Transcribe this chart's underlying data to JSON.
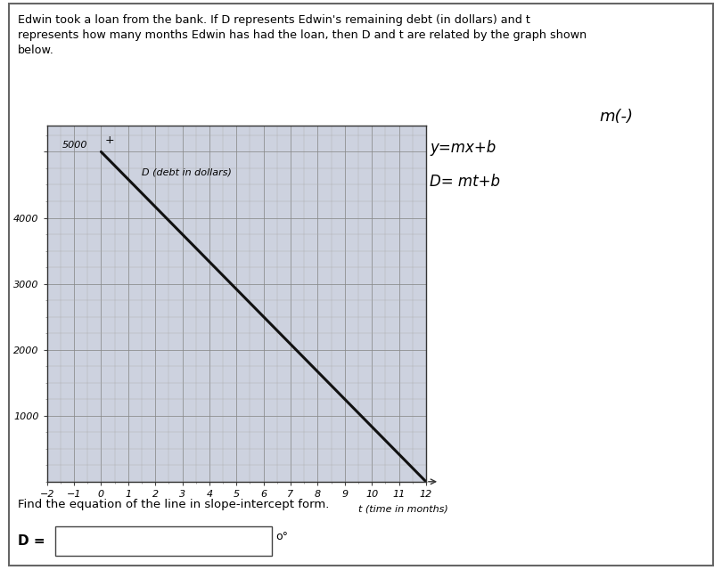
{
  "title_text": "Edwin took a loan from the bank. If D represents Edwin's remaining debt (in dollars) and t\nrepresents how many months Edwin has had the loan, then D and t are related by the graph shown\nbelow.",
  "ylabel_inside": "D (debt in dollars)",
  "xlabel": "t (time in months)",
  "xlim": [
    -2,
    12
  ],
  "ylim": [
    0,
    5400
  ],
  "yticks": [
    1000,
    2000,
    3000,
    4000,
    5000
  ],
  "xticks": [
    -2,
    -1,
    0,
    1,
    2,
    3,
    4,
    5,
    6,
    7,
    8,
    9,
    10,
    11,
    12
  ],
  "line_x": [
    0,
    12
  ],
  "line_y": [
    5000,
    0
  ],
  "line_color": "#111111",
  "line_width": 2.2,
  "grid_minor_color": "#aaaaaa",
  "grid_major_color": "#888888",
  "bg_color": "#cdd2df",
  "annotation1": "y=mx+b",
  "annotation2": "D= mt+b",
  "annotation3": "m(-)",
  "find_text": "Find the equation of the line in slope-intercept form.",
  "d_label": "D =",
  "sigma_label": "o°"
}
